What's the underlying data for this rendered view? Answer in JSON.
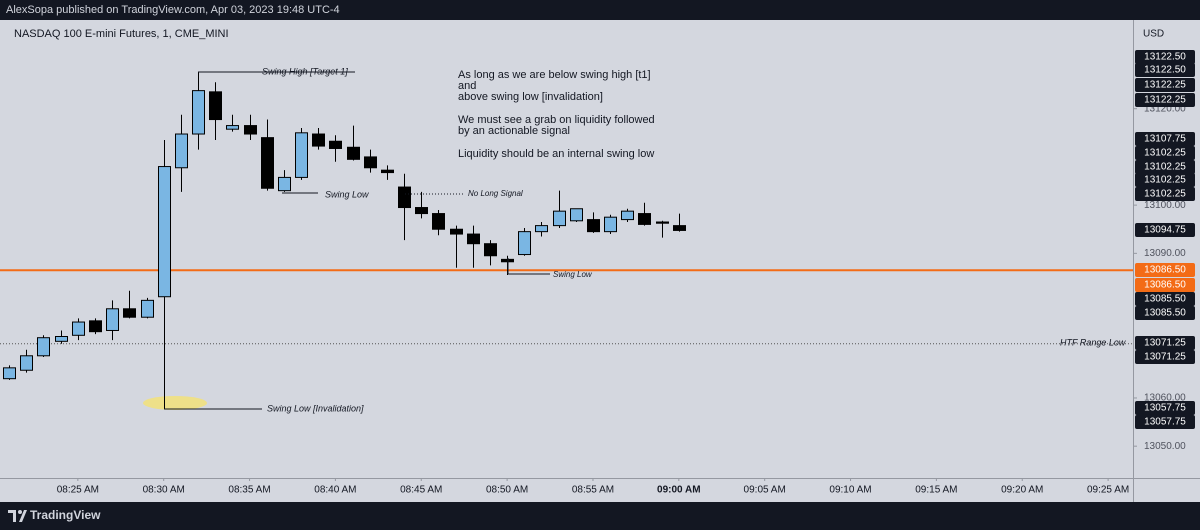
{
  "header": {
    "text": "AlexSopa published on TradingView.com, Apr 03, 2023 19:48 UTC-4"
  },
  "chart_data": {
    "type": "candlestick",
    "title": "NASDAQ 100 E-mini Futures, 1, CME_MINI",
    "currency": "USD",
    "x": [
      "08:21",
      "08:22",
      "08:23",
      "08:24",
      "08:25",
      "08:26",
      "08:27",
      "08:28",
      "08:29",
      "08:30",
      "08:31",
      "08:32",
      "08:33",
      "08:34",
      "08:35",
      "08:36",
      "08:37",
      "08:38",
      "08:39",
      "08:40",
      "08:41",
      "08:42",
      "08:43",
      "08:44",
      "08:45",
      "08:46",
      "08:47",
      "08:48",
      "08:49",
      "08:50",
      "08:51",
      "08:52",
      "08:53",
      "08:54",
      "08:55",
      "08:56",
      "08:57",
      "08:58",
      "08:59",
      "09:00"
    ],
    "open": [
      13064.0,
      13065.75,
      13068.75,
      13071.75,
      13073.0,
      13076.0,
      13074.0,
      13078.5,
      13076.75,
      13081.0,
      13107.75,
      13114.75,
      13123.5,
      13115.75,
      13116.5,
      13114.0,
      13103.0,
      13105.75,
      13114.75,
      13113.25,
      13112.0,
      13110.0,
      13107.25,
      13103.75,
      13099.5,
      13098.25,
      13095.0,
      13094.0,
      13092.0,
      13088.75,
      13089.75,
      13094.5,
      13095.75,
      13096.75,
      13097.0,
      13094.5,
      13097.0,
      13098.25,
      13096.5,
      13095.75
    ],
    "high": [
      13066.75,
      13070.0,
      13073.0,
      13074.0,
      13076.5,
      13076.5,
      13080.25,
      13082.25,
      13080.75,
      13113.5,
      13118.75,
      13127.5,
      13125.5,
      13118.75,
      13118.75,
      13117.75,
      13107.25,
      13116.0,
      13116.0,
      13114.5,
      13116.5,
      13111.5,
      13108.25,
      13106.5,
      13102.75,
      13099.0,
      13095.75,
      13095.75,
      13092.75,
      13089.5,
      13095.25,
      13096.5,
      13103.0,
      13099.25,
      13098.5,
      13098.0,
      13099.25,
      13100.5,
      13096.75,
      13098.25
    ],
    "low": [
      13063.75,
      13065.25,
      13068.5,
      13071.25,
      13072.0,
      13073.25,
      13072.0,
      13076.5,
      13076.5,
      13057.75,
      13102.75,
      13111.5,
      13113.5,
      13115.25,
      13113.5,
      13103.0,
      13102.75,
      13105.25,
      13111.5,
      13109.0,
      13109.25,
      13106.75,
      13105.25,
      13092.75,
      13097.25,
      13093.75,
      13087.0,
      13087.0,
      13087.5,
      13085.5,
      13089.5,
      13093.5,
      13095.25,
      13096.5,
      13094.25,
      13094.0,
      13096.5,
      13095.75,
      13093.25,
      13094.5
    ],
    "close": [
      13066.25,
      13068.75,
      13072.5,
      13072.75,
      13075.75,
      13073.75,
      13078.5,
      13076.75,
      13080.25,
      13108.0,
      13114.75,
      13123.75,
      13117.75,
      13116.5,
      13114.75,
      13103.5,
      13105.75,
      13115.0,
      13112.25,
      13111.75,
      13109.5,
      13107.75,
      13106.75,
      13099.5,
      13098.25,
      13095.0,
      13094.0,
      13092.0,
      13089.5,
      13088.25,
      13094.5,
      13095.75,
      13098.75,
      13099.25,
      13094.5,
      13097.5,
      13098.75,
      13096.0,
      13096.25,
      13094.75
    ],
    "up_color": "#7ab6e3",
    "down_color": "#000000",
    "xlim": [
      "08:20:28",
      "09:26:27"
    ],
    "xticks": [
      "08:25 AM",
      "08:30 AM",
      "08:35 AM",
      "08:40 AM",
      "08:45 AM",
      "08:50 AM",
      "08:55 AM",
      "09:00 AM",
      "09:05 AM",
      "09:10 AM",
      "09:15 AM",
      "09:20 AM",
      "09:25 AM"
    ],
    "ylim": [
      13043.4,
      13138.4
    ],
    "yticks": [
      {
        "value": 13050,
        "label": "13050.00"
      },
      {
        "value": 13060,
        "label": "13060.00"
      },
      {
        "value": 13090,
        "label": "13090.00"
      },
      {
        "value": 13100,
        "label": "13100.00"
      },
      {
        "value": 13120,
        "label": "13120.00"
      }
    ],
    "price_labels": [
      {
        "value": 13122.5,
        "label": "13122.50"
      },
      {
        "value": 13122.5,
        "label": "13122.50"
      },
      {
        "value": 13122.25,
        "label": "13122.25"
      },
      {
        "value": 13122.25,
        "label": "13122.25"
      },
      {
        "value": 13107.75,
        "label": "13107.75"
      },
      {
        "value": 13102.25,
        "label": "13102.25"
      },
      {
        "value": 13102.25,
        "label": "13102.25"
      },
      {
        "value": 13102.25,
        "label": "13102.25"
      },
      {
        "value": 13102.25,
        "label": "13102.25"
      },
      {
        "value": 13094.75,
        "label": "13094.75"
      },
      {
        "value": 13086.5,
        "label": "13086.50",
        "color": "#f36b16"
      },
      {
        "value": 13086.5,
        "label": "13086.50",
        "color": "#f36b16"
      },
      {
        "value": 13085.5,
        "label": "13085.50"
      },
      {
        "value": 13085.5,
        "label": "13085.50"
      },
      {
        "value": 13071.25,
        "label": "13071.25"
      },
      {
        "value": 13071.25,
        "label": "13071.25"
      },
      {
        "value": 13057.75,
        "label": "13057.75"
      },
      {
        "value": 13057.75,
        "label": "13057.75"
      }
    ],
    "annotations": [
      "Swing High [Target 1]",
      "Swing Low",
      "No Long Signal",
      "Swing Low",
      "Swing Low [Invalidation]",
      "HTF Range Low"
    ],
    "note": [
      [
        "As long as we are below swing high [t1]",
        "and",
        "above swing low [invalidation]"
      ],
      [
        "We must see a grab on liquidity followed",
        "by an actionable signal"
      ],
      [
        "Liquidity should be an internal swing low"
      ]
    ]
  },
  "footer": {
    "brand": "TradingView"
  }
}
